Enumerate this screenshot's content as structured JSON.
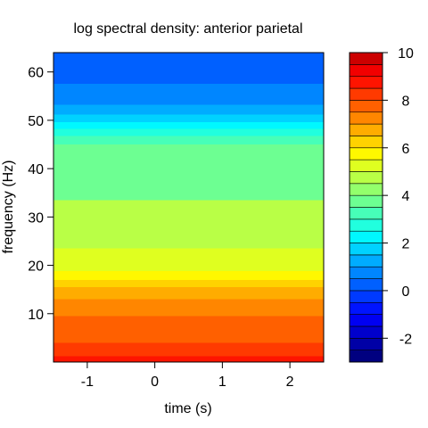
{
  "chart_data": {
    "type": "heatmap",
    "subtype": "filled-contour",
    "title": "log spectral density: anterior parietal",
    "xlabel": "time (s)",
    "ylabel": "frequency (Hz)",
    "xlim": [
      -1.5,
      2.5
    ],
    "ylim": [
      0,
      64
    ],
    "xticks": [
      -1,
      0,
      1,
      2
    ],
    "yticks": [
      10,
      20,
      30,
      40,
      50,
      60
    ],
    "grid": false,
    "colorbar": {
      "placement": "right",
      "range": [
        -3,
        10
      ],
      "ticks": [
        -2,
        0,
        2,
        4,
        6,
        8,
        10
      ],
      "level_step": 0.5,
      "colors": [
        "#000080",
        "#0000A6",
        "#0000CC",
        "#0000F2",
        "#0014FF",
        "#003AFF",
        "#0060FF",
        "#0086FF",
        "#00ACFF",
        "#00D2FF",
        "#00F8FF",
        "#21FFDE",
        "#47FFB8",
        "#6DFF92",
        "#93FF6C",
        "#B9FF46",
        "#DFFF20",
        "#FFF800",
        "#FFD200",
        "#FFAC00",
        "#FF8600",
        "#FF6000",
        "#FF3A00",
        "#FF1400",
        "#F20000",
        "#CC0000",
        "#A60000",
        "#800000"
      ]
    },
    "bands": [
      {
        "from": 0.0,
        "to": 1.2,
        "value": 8.7
      },
      {
        "from": 1.2,
        "to": 4.0,
        "value": 8.2
      },
      {
        "from": 4.0,
        "to": 9.5,
        "value": 7.75
      },
      {
        "from": 9.5,
        "to": 13.0,
        "value": 7.25
      },
      {
        "from": 13.0,
        "to": 15.5,
        "value": 6.75
      },
      {
        "from": 15.5,
        "to": 17.0,
        "value": 6.25
      },
      {
        "from": 17.0,
        "to": 18.8,
        "value": 5.75
      },
      {
        "from": 18.8,
        "to": 23.5,
        "value": 5.25
      },
      {
        "from": 23.5,
        "to": 33.5,
        "value": 4.75
      },
      {
        "from": 33.5,
        "to": 45.0,
        "value": 3.75
      },
      {
        "from": 45.0,
        "to": 46.8,
        "value": 3.25
      },
      {
        "from": 46.8,
        "to": 48.2,
        "value": 2.75
      },
      {
        "from": 48.2,
        "to": 49.6,
        "value": 2.25
      },
      {
        "from": 49.6,
        "to": 51.2,
        "value": 1.75
      },
      {
        "from": 51.2,
        "to": 53.2,
        "value": 1.25
      },
      {
        "from": 53.2,
        "to": 57.5,
        "value": 0.75
      },
      {
        "from": 57.5,
        "to": 64.0,
        "value": 0.25
      }
    ]
  }
}
